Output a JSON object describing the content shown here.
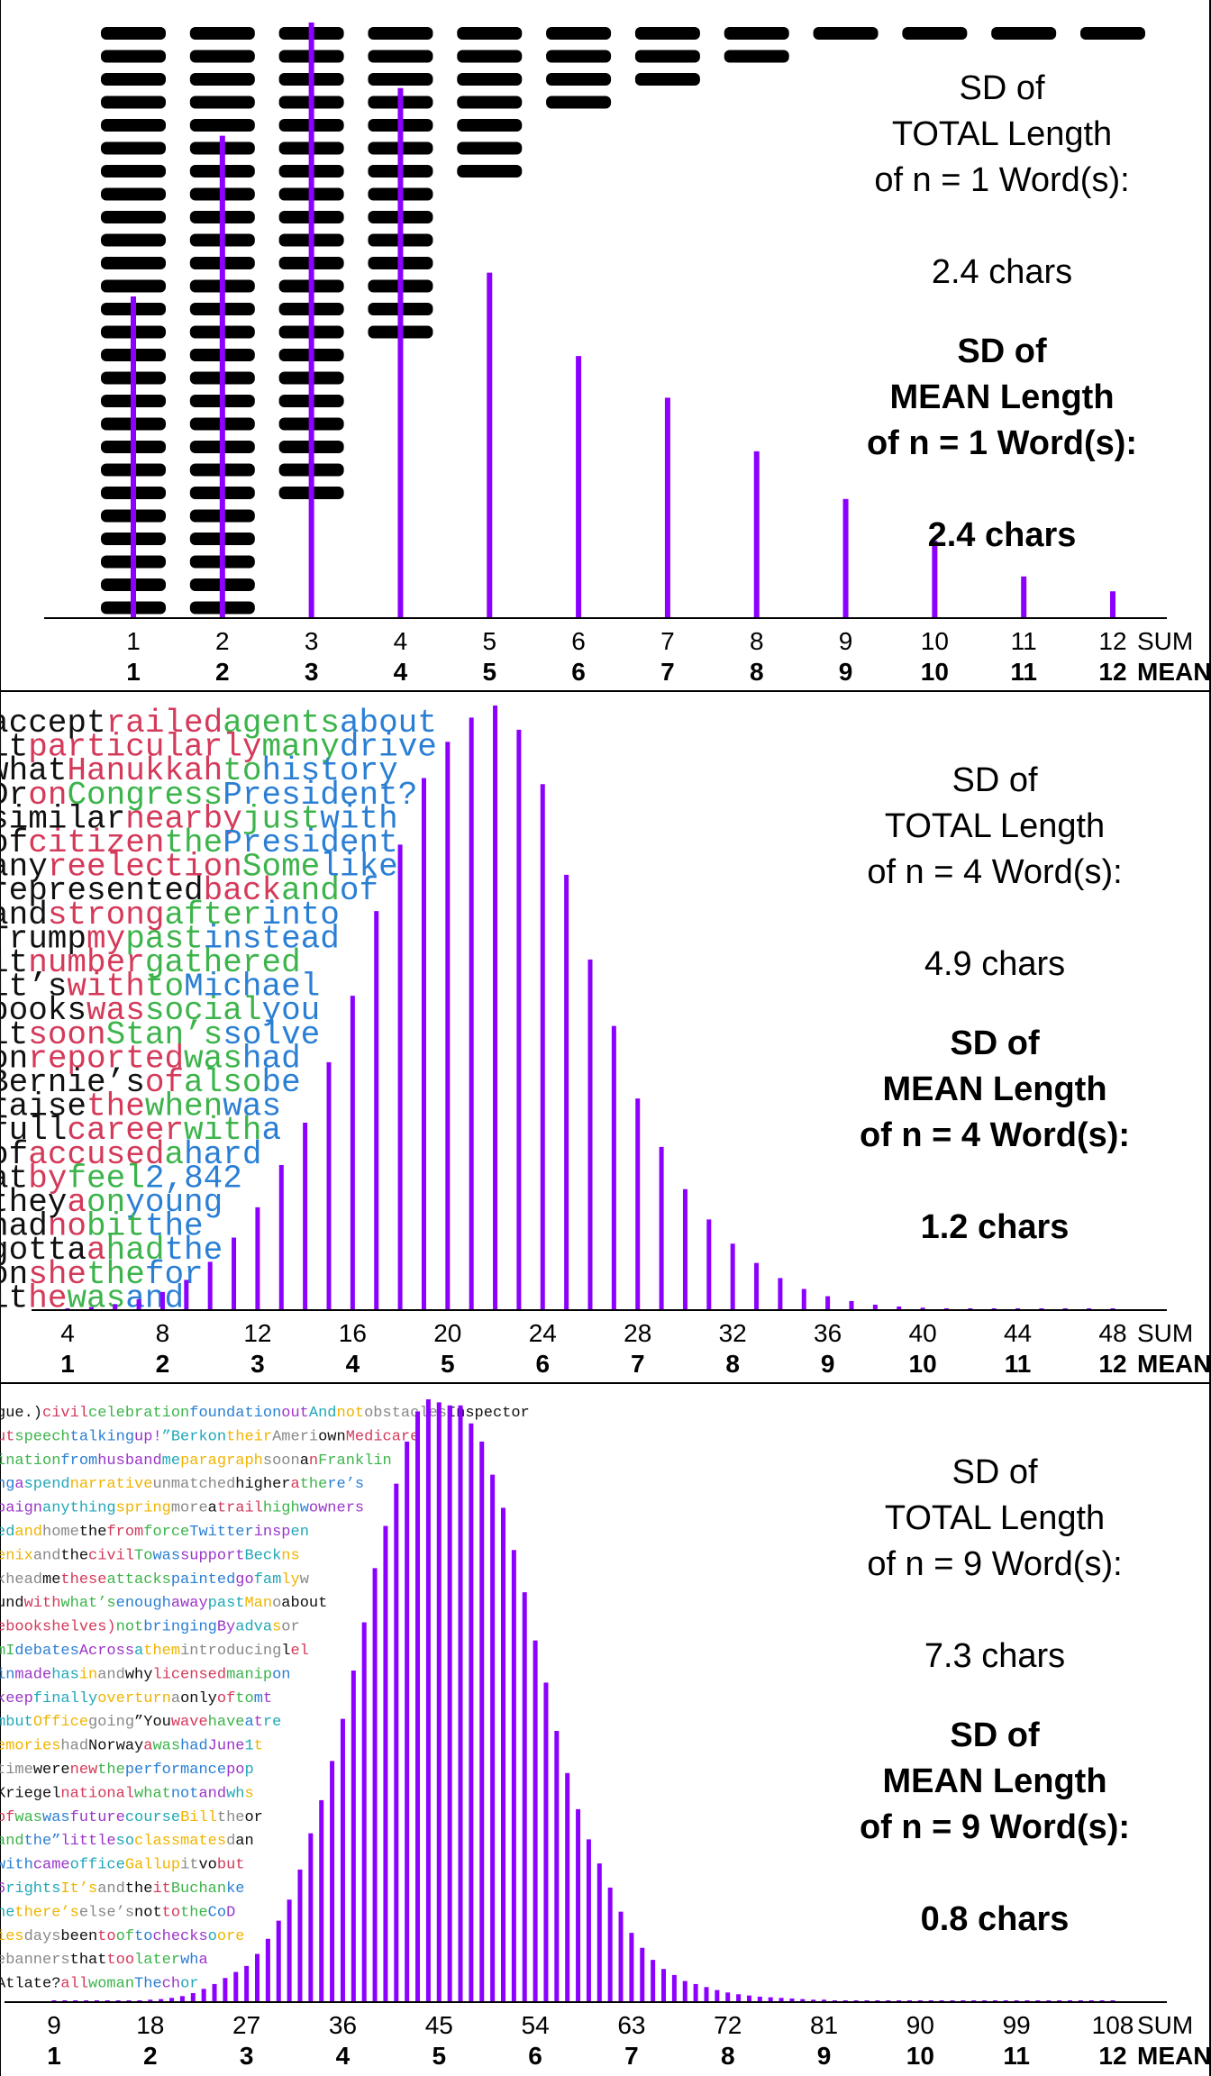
{
  "colors": {
    "bar": "#8b00ff",
    "axis": "#000000",
    "word_palette": [
      "#111111",
      "#d43a5a",
      "#3cb44b",
      "#2a7fd4",
      "#9a36c9",
      "#20a8b8",
      "#f0b400",
      "#888888"
    ]
  },
  "chart_data": [
    {
      "type": "bar",
      "x_sum": [
        1,
        2,
        3,
        4,
        5,
        6,
        7,
        8,
        9,
        10,
        11,
        12
      ],
      "values": [
        0.54,
        0.81,
        1.0,
        0.89,
        0.58,
        0.44,
        0.37,
        0.28,
        0.2,
        0.13,
        0.07,
        0.045
      ],
      "word_counts": [
        26,
        26,
        21,
        14,
        7,
        4,
        3,
        2,
        1,
        1,
        1,
        1
      ],
      "x_ticks_sum": [
        "1",
        "2",
        "3",
        "4",
        "5",
        "6",
        "7",
        "8",
        "9",
        "10",
        "11",
        "12"
      ],
      "x_ticks_mean": [
        "1",
        "2",
        "3",
        "4",
        "5",
        "6",
        "7",
        "8",
        "9",
        "10",
        "11",
        "12"
      ],
      "sum_label": "SUM",
      "mean_label": "MEAN",
      "total_lines": [
        "SD of",
        "TOTAL Length",
        "of n = 1 Word(s):",
        "2.4 chars"
      ],
      "mean_lines": [
        "SD of",
        "MEAN Length",
        "of n = 1 Word(s):",
        "2.4 chars"
      ],
      "word_rows": []
    },
    {
      "type": "bar",
      "x_sum": [
        4,
        5,
        6,
        7,
        8,
        9,
        10,
        11,
        12,
        13,
        14,
        15,
        16,
        17,
        18,
        19,
        20,
        21,
        22,
        23,
        24,
        25,
        26,
        27,
        28,
        29,
        30,
        31,
        32,
        33,
        34,
        35,
        36,
        37,
        38,
        39,
        40,
        41,
        42,
        43,
        44,
        45,
        46,
        47,
        48
      ],
      "values": [
        0.002,
        0.005,
        0.01,
        0.018,
        0.03,
        0.05,
        0.08,
        0.12,
        0.17,
        0.24,
        0.31,
        0.41,
        0.52,
        0.66,
        0.77,
        0.88,
        0.94,
        0.98,
        1.0,
        0.96,
        0.87,
        0.72,
        0.58,
        0.47,
        0.35,
        0.27,
        0.2,
        0.15,
        0.11,
        0.078,
        0.053,
        0.035,
        0.023,
        0.015,
        0.009,
        0.006,
        0.004,
        0.003,
        0.002,
        0.0015,
        0.001,
        0.0008,
        0.0006,
        0.0004,
        0.0003
      ],
      "x_ticks_sum": [
        "4",
        "8",
        "12",
        "16",
        "20",
        "24",
        "28",
        "32",
        "36",
        "40",
        "44",
        "48"
      ],
      "x_ticks_mean": [
        "1",
        "2",
        "3",
        "4",
        "5",
        "6",
        "7",
        "8",
        "9",
        "10",
        "11",
        "12"
      ],
      "sum_label": "SUM",
      "mean_label": "MEAN",
      "total_lines": [
        "SD of",
        "TOTAL Length",
        "of n = 4 Word(s):",
        "4.9 chars"
      ],
      "mean_lines": [
        "SD of",
        "MEAN Length",
        "of n = 4 Word(s):",
        "1.2 chars"
      ],
      "word_rows": [
        [
          "accept",
          "railed",
          "agents",
          "about"
        ],
        [
          "it",
          "particularly",
          "many",
          "drive"
        ],
        [
          "what",
          "Hanukkah",
          "to",
          "history"
        ],
        [
          "Dr",
          "on",
          "Congress",
          "President?"
        ],
        [
          "similar",
          "nearby",
          "just",
          "with"
        ],
        [
          "of",
          "citizen",
          "the",
          "President"
        ],
        [
          "any",
          "reelection",
          "Some",
          "like"
        ],
        [
          "represented",
          "back",
          "and",
          "of"
        ],
        [
          "and",
          "strong",
          "after",
          "into"
        ],
        [
          "Trump",
          "my",
          "past",
          "instead"
        ],
        [
          "it",
          "number",
          "gathered",
          ""
        ],
        [
          "it’s",
          "with",
          "to",
          "Michael"
        ],
        [
          "books",
          "was",
          "social",
          "you"
        ],
        [
          "it",
          "soon",
          "Stan’s",
          "solve"
        ],
        [
          "on",
          "reported",
          "was",
          "had"
        ],
        [
          "Bernie’s",
          "of",
          "also",
          "be"
        ],
        [
          "raise",
          "the",
          "when",
          "was"
        ],
        [
          "full",
          "career",
          "with",
          "a"
        ],
        [
          "of",
          "accused",
          "a",
          "hard"
        ],
        [
          "at",
          "by",
          "feel",
          "2,842"
        ],
        [
          "they",
          "a",
          "on",
          "young"
        ],
        [
          "had",
          "no",
          "bit",
          "the"
        ],
        [
          "gotta",
          "a",
          "had",
          "the"
        ],
        [
          "on",
          "she",
          "the",
          "for"
        ],
        [
          "it",
          "he",
          "was",
          "and"
        ]
      ]
    },
    {
      "type": "bar",
      "x_sum": [
        9,
        10,
        11,
        12,
        13,
        14,
        15,
        16,
        17,
        18,
        19,
        20,
        21,
        22,
        23,
        24,
        25,
        26,
        27,
        28,
        29,
        30,
        31,
        32,
        33,
        34,
        35,
        36,
        37,
        38,
        39,
        40,
        41,
        42,
        43,
        44,
        45,
        46,
        47,
        48,
        49,
        50,
        51,
        52,
        53,
        54,
        55,
        56,
        57,
        58,
        59,
        60,
        61,
        62,
        63,
        64,
        65,
        66,
        67,
        68,
        69,
        70,
        71,
        72,
        73,
        74,
        75,
        76,
        77,
        78,
        79,
        80,
        81,
        82,
        83,
        84,
        85,
        86,
        87,
        88,
        89,
        90,
        91,
        92,
        93,
        94,
        95,
        96,
        97,
        98,
        99,
        100,
        101,
        102,
        103,
        104,
        105,
        106,
        107,
        108
      ],
      "values": [
        0.002,
        0.002,
        0.002,
        0.002,
        0.002,
        0.002,
        0.002,
        0.002,
        0.003,
        0.004,
        0.005,
        0.007,
        0.01,
        0.015,
        0.022,
        0.03,
        0.04,
        0.05,
        0.06,
        0.08,
        0.105,
        0.135,
        0.17,
        0.22,
        0.28,
        0.335,
        0.4,
        0.47,
        0.55,
        0.63,
        0.72,
        0.79,
        0.86,
        0.93,
        0.98,
        1.0,
        0.995,
        0.99,
        0.99,
        0.96,
        0.93,
        0.875,
        0.82,
        0.75,
        0.68,
        0.6,
        0.53,
        0.45,
        0.38,
        0.32,
        0.27,
        0.23,
        0.19,
        0.15,
        0.115,
        0.09,
        0.07,
        0.055,
        0.045,
        0.035,
        0.03,
        0.025,
        0.02,
        0.016,
        0.013,
        0.011,
        0.009,
        0.008,
        0.007,
        0.006,
        0.005,
        0.004,
        0.004,
        0.003,
        0.003,
        0.003,
        0.002,
        0.002,
        0.002,
        0.002,
        0.002,
        0.002,
        0.002,
        0.002,
        0.002,
        0.002,
        0.002,
        0.002,
        0.002,
        0.002,
        0.002,
        0.002,
        0.002,
        0.002,
        0.002,
        0.002,
        0.002,
        0.002,
        0.002,
        0.002
      ],
      "x_ticks_sum": [
        "9",
        "18",
        "27",
        "36",
        "45",
        "54",
        "63",
        "72",
        "81",
        "90",
        "99",
        "108"
      ],
      "x_ticks_mean": [
        "1",
        "2",
        "3",
        "4",
        "5",
        "6",
        "7",
        "8",
        "9",
        "10",
        "11",
        "12"
      ],
      "sum_label": "SUM",
      "mean_label": "MEAN",
      "total_lines": [
        "SD of",
        "TOTAL Length",
        "of n = 9 Word(s):",
        "7.3 chars"
      ],
      "mean_lines": [
        "SD of",
        "MEAN Length",
        "of n = 9 Word(s):",
        "0.8 chars"
      ],
      "word_rows": [
        [
          "gue.)",
          "civil",
          "celebration",
          "foundation",
          "out",
          "And",
          "not",
          "obstacles",
          "Inspector"
        ],
        [
          "ut",
          "speech",
          "talking",
          "up!",
          "”Berkon",
          "their",
          "Ameri",
          "own",
          "Medicare"
        ],
        [
          "ination",
          "from",
          "husband",
          "me",
          "paragraph",
          "soon",
          "a",
          "n",
          "Franklin"
        ],
        [
          "ng",
          "a",
          "spend",
          "narrative",
          "unmatched",
          "higher",
          "a",
          "the",
          "re’s"
        ],
        [
          "paign",
          "anything",
          "spring",
          "more",
          "a",
          "trail",
          "high",
          "w",
          "owners"
        ],
        [
          "ed",
          "and",
          "home",
          "the",
          "from",
          "force",
          "Twitter",
          "insp",
          "en"
        ],
        [
          "enix",
          "and",
          "the",
          "civil",
          "To",
          "was",
          "support",
          "Beck",
          "ns"
        ],
        [
          "khead",
          "me",
          "these",
          "attacks",
          "painted",
          "go",
          "fam",
          "ly",
          "w"
        ],
        [
          "und",
          "with",
          "what’s",
          "enough",
          "away",
          "past",
          "Man",
          "o",
          "about"
        ],
        [
          "ebookshelves)",
          "not",
          "bringing",
          "By",
          "adva",
          "s",
          "or"
        ],
        [
          "mI",
          "debates",
          "Across",
          "a",
          "them",
          "introducing",
          "l",
          "el"
        ],
        [
          "in",
          "made",
          "has",
          "in",
          "and",
          "why",
          "licensed",
          "manip",
          "on"
        ],
        [
          "keep",
          "finally",
          "overturn",
          "a",
          "only",
          "of",
          "to",
          "m",
          "t"
        ],
        [
          "mbut",
          "Office",
          "going",
          "”You",
          "wave",
          "have",
          "a",
          "t",
          "re"
        ],
        [
          "emories",
          "had",
          "Norway",
          "a",
          "was",
          "had",
          "June",
          "1",
          "t"
        ],
        [
          "time",
          "were",
          "new",
          "the",
          "performance",
          "po",
          "p"
        ],
        [
          "Kriegel",
          "national",
          "what",
          "not",
          "and",
          "wh",
          "s"
        ],
        [
          "of",
          "was",
          "was",
          "future",
          "course",
          "Bill",
          "the",
          "or"
        ],
        [
          "and",
          "the”",
          "little",
          "so",
          "classmates",
          "d",
          "an"
        ],
        [
          "with",
          "came",
          "office",
          "Gallup",
          "it",
          "vo",
          "but"
        ],
        [
          "6",
          "rights",
          "It’s",
          "and",
          "the",
          "it",
          "Buchan",
          "ke"
        ],
        [
          "he",
          "there’s",
          "else’s",
          "not",
          "to",
          "the",
          "Co",
          "D"
        ],
        [
          "ies",
          "days",
          "been",
          "to",
          "of",
          "to",
          "checks",
          "o",
          "ore"
        ],
        [
          "ebanners",
          "that",
          "too",
          "later",
          "wh",
          "a"
        ],
        [
          "Atlate?",
          "all",
          "woman",
          "The",
          "ch",
          "or"
        ]
      ]
    }
  ]
}
